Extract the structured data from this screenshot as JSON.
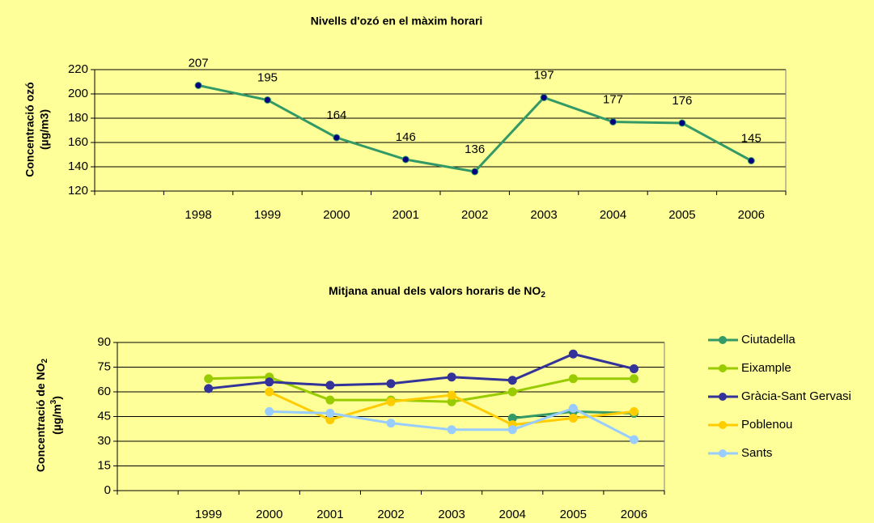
{
  "chart_data": [
    {
      "type": "line",
      "title": "Nivells d'ozó en el màxim horari",
      "y_label": [
        "Concentració ozó",
        "(µg/m3)"
      ],
      "categories": [
        null,
        "1998",
        "1999",
        "2000",
        "2001",
        "2002",
        "2003",
        "2004",
        "2005",
        "2006"
      ],
      "series": [
        {
          "name": null,
          "color": "#339966",
          "marker_color": "#000080",
          "values": [
            null,
            207,
            195,
            164,
            146,
            136,
            197,
            177,
            176,
            145
          ]
        }
      ],
      "data_labels": true,
      "ylim": [
        120,
        220
      ],
      "yticks": [
        120,
        140,
        160,
        180,
        200,
        220
      ],
      "grid": true
    },
    {
      "type": "line",
      "title": [
        "Mitjana anual dels valors horaris de NO",
        "2"
      ],
      "y_label": [
        "Concentració de NO",
        "2",
        "(µg/m",
        "3",
        ")"
      ],
      "categories": [
        null,
        "1999",
        "2000",
        "2001",
        "2002",
        "2003",
        "2004",
        "2005",
        "2006"
      ],
      "series": [
        {
          "name": "Ciutadella",
          "color": "#339966",
          "values": [
            null,
            null,
            null,
            null,
            null,
            null,
            44,
            48,
            47
          ]
        },
        {
          "name": "Eixample",
          "color": "#99CC00",
          "values": [
            null,
            68,
            69,
            55,
            55,
            54,
            60,
            68,
            68
          ]
        },
        {
          "name": "Gràcia-Sant Gervasi",
          "color": "#333399",
          "values": [
            null,
            62,
            66,
            64,
            65,
            69,
            67,
            83,
            74
          ]
        },
        {
          "name": "Poblenou",
          "color": "#FFCC00",
          "values": [
            null,
            null,
            60,
            43,
            54,
            58,
            40,
            44,
            48
          ]
        },
        {
          "name": "Sants",
          "color": "#99CCFF",
          "values": [
            null,
            null,
            48,
            47,
            41,
            37,
            37,
            50,
            31
          ]
        }
      ],
      "legend": "right",
      "ylim": [
        0,
        90
      ],
      "yticks": [
        0,
        15,
        30,
        45,
        60,
        75,
        90
      ],
      "grid": true
    }
  ]
}
